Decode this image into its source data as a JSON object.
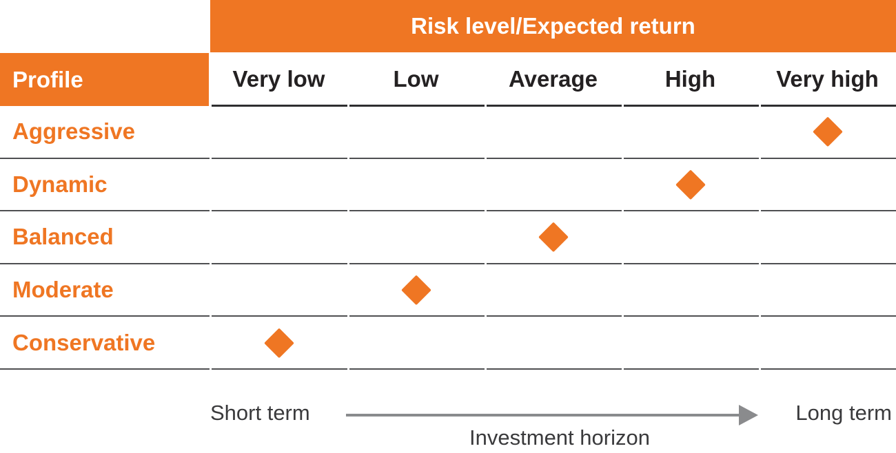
{
  "chart_data": {
    "type": "table",
    "title": "Risk level/Expected return",
    "row_header": "Profile",
    "columns": [
      "Very low",
      "Low",
      "Average",
      "High",
      "Very high"
    ],
    "rows": [
      {
        "profile": "Aggressive",
        "risk_level": "Very high"
      },
      {
        "profile": "Dynamic",
        "risk_level": "High"
      },
      {
        "profile": "Balanced",
        "risk_level": "Average"
      },
      {
        "profile": "Moderate",
        "risk_level": "Low"
      },
      {
        "profile": "Conservative",
        "risk_level": "Very low"
      }
    ],
    "marker": "diamond",
    "axis": {
      "left_label": "Short term",
      "right_label": "Long term",
      "title": "Investment horizon"
    },
    "layout_hints": {
      "grid": "horizontal row dividers only",
      "legend_position": "none"
    }
  },
  "colors": {
    "orange": "#EF7623",
    "header-text": "#242122",
    "divider": "#4E4F51",
    "underline": "#2E2E30",
    "axis-text": "#3A3A3C",
    "arrow": "#8A8B8D"
  }
}
